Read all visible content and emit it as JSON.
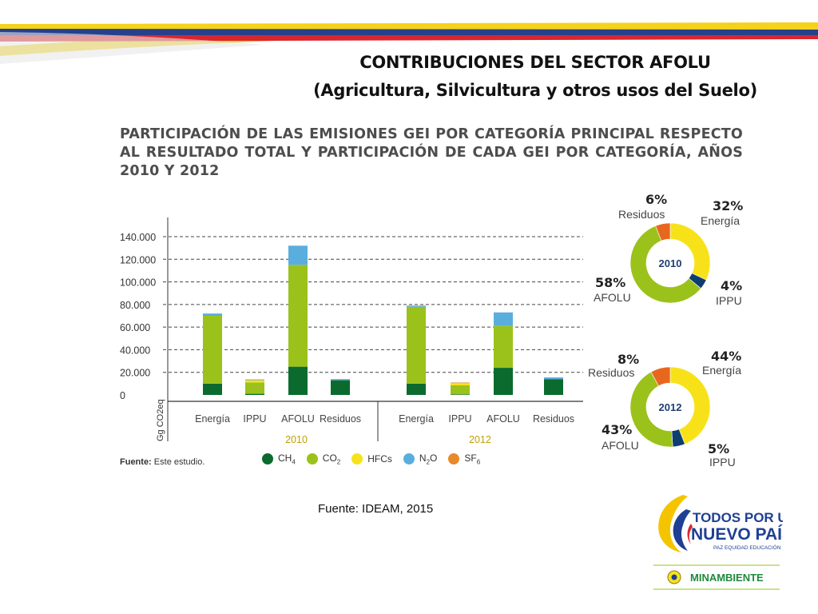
{
  "title": {
    "line1": "CONTRIBUCIONES DEL SECTOR AFOLU",
    "line2": "(Agricultura, Silvicultura y otros usos del Suelo)"
  },
  "chart_heading": "PARTICIPACIÓN DE LAS EMISIONES GEI POR CATEGORÍA PRINCIPAL RESPECTO AL RESULTADO TOTAL Y PARTICIPACIÓN DE CADA GEI POR CATEGORÍA, AÑOS 2010 Y 2012",
  "source_small": {
    "label": "Fuente:",
    "value": "Este estudio."
  },
  "footer_source": "Fuente: IDEAM, 2015",
  "colors": {
    "CH4": "#0b6b2f",
    "CO2": "#9bc21a",
    "HFCs": "#f7e21a",
    "N2O": "#5aaede",
    "SF6": "#e8892a",
    "donut_energia": "#f7e21a",
    "donut_ippu": "#0e3e6e",
    "donut_afolu": "#9bc21a",
    "donut_residuos": "#e8671e"
  },
  "legend": [
    {
      "key": "CH4",
      "base": "CH",
      "sub": "4",
      "color": "#0b6b2f"
    },
    {
      "key": "CO2",
      "base": "CO",
      "sub": "2",
      "color": "#9bc21a"
    },
    {
      "key": "HFCs",
      "base": "HFCs",
      "sub": "",
      "color": "#f7e21a"
    },
    {
      "key": "N2O",
      "base": "N",
      "sub": "2",
      "tail": "O",
      "color": "#5aaede"
    },
    {
      "key": "SF6",
      "base": "SF",
      "sub": "6",
      "color": "#e8892a"
    }
  ],
  "chart_data": [
    {
      "type": "bar",
      "stacked": true,
      "ylabel": "Gg CO2eq",
      "ylim": [
        0,
        140000
      ],
      "yticks": [
        "0",
        "20.000",
        "40.000",
        "60.000",
        "80.000",
        "100.000",
        "120.000",
        "140.000"
      ],
      "grid": "dashed",
      "groups": [
        "2010",
        "2012"
      ],
      "categories": [
        "Energía",
        "IPPU",
        "AFOLU",
        "Residuos",
        "Energía",
        "IPPU",
        "AFOLU",
        "Residuos"
      ],
      "series": [
        {
          "name": "CH4",
          "values": [
            10000,
            1000,
            25000,
            13000,
            10000,
            500,
            24000,
            14000
          ]
        },
        {
          "name": "CO2",
          "values": [
            60000,
            10000,
            90000,
            0,
            68000,
            8000,
            37000,
            0
          ]
        },
        {
          "name": "HFCs",
          "values": [
            0,
            2000,
            0,
            0,
            0,
            2000,
            0,
            0
          ]
        },
        {
          "name": "N2O",
          "values": [
            2000,
            500,
            17000,
            1000,
            1000,
            300,
            12000,
            1500
          ]
        },
        {
          "name": "SF6",
          "values": [
            0,
            200,
            0,
            0,
            0,
            200,
            0,
            0
          ]
        }
      ]
    },
    {
      "type": "pie",
      "donut": true,
      "center_label": "2010",
      "slices": [
        {
          "name": "Energía",
          "value": 32,
          "label": "32%"
        },
        {
          "name": "IPPU",
          "value": 4,
          "label": "4%"
        },
        {
          "name": "AFOLU",
          "value": 58,
          "label": "58%"
        },
        {
          "name": "Residuos",
          "value": 6,
          "label": "6%"
        }
      ]
    },
    {
      "type": "pie",
      "donut": true,
      "center_label": "2012",
      "slices": [
        {
          "name": "Energía",
          "value": 44,
          "label": "44%"
        },
        {
          "name": "IPPU",
          "value": 5,
          "label": "5%"
        },
        {
          "name": "AFOLU",
          "value": 43,
          "label": "43%"
        },
        {
          "name": "Residuos",
          "value": 8,
          "label": "8%"
        }
      ]
    }
  ],
  "logos": {
    "slogan_line1": "TODOS POR UN",
    "slogan_line2": "NUEVO PAÍS",
    "slogan_sub": "PAZ  EQUIDAD  EDUCACIÓN",
    "ministry": "MINAMBIENTE"
  }
}
